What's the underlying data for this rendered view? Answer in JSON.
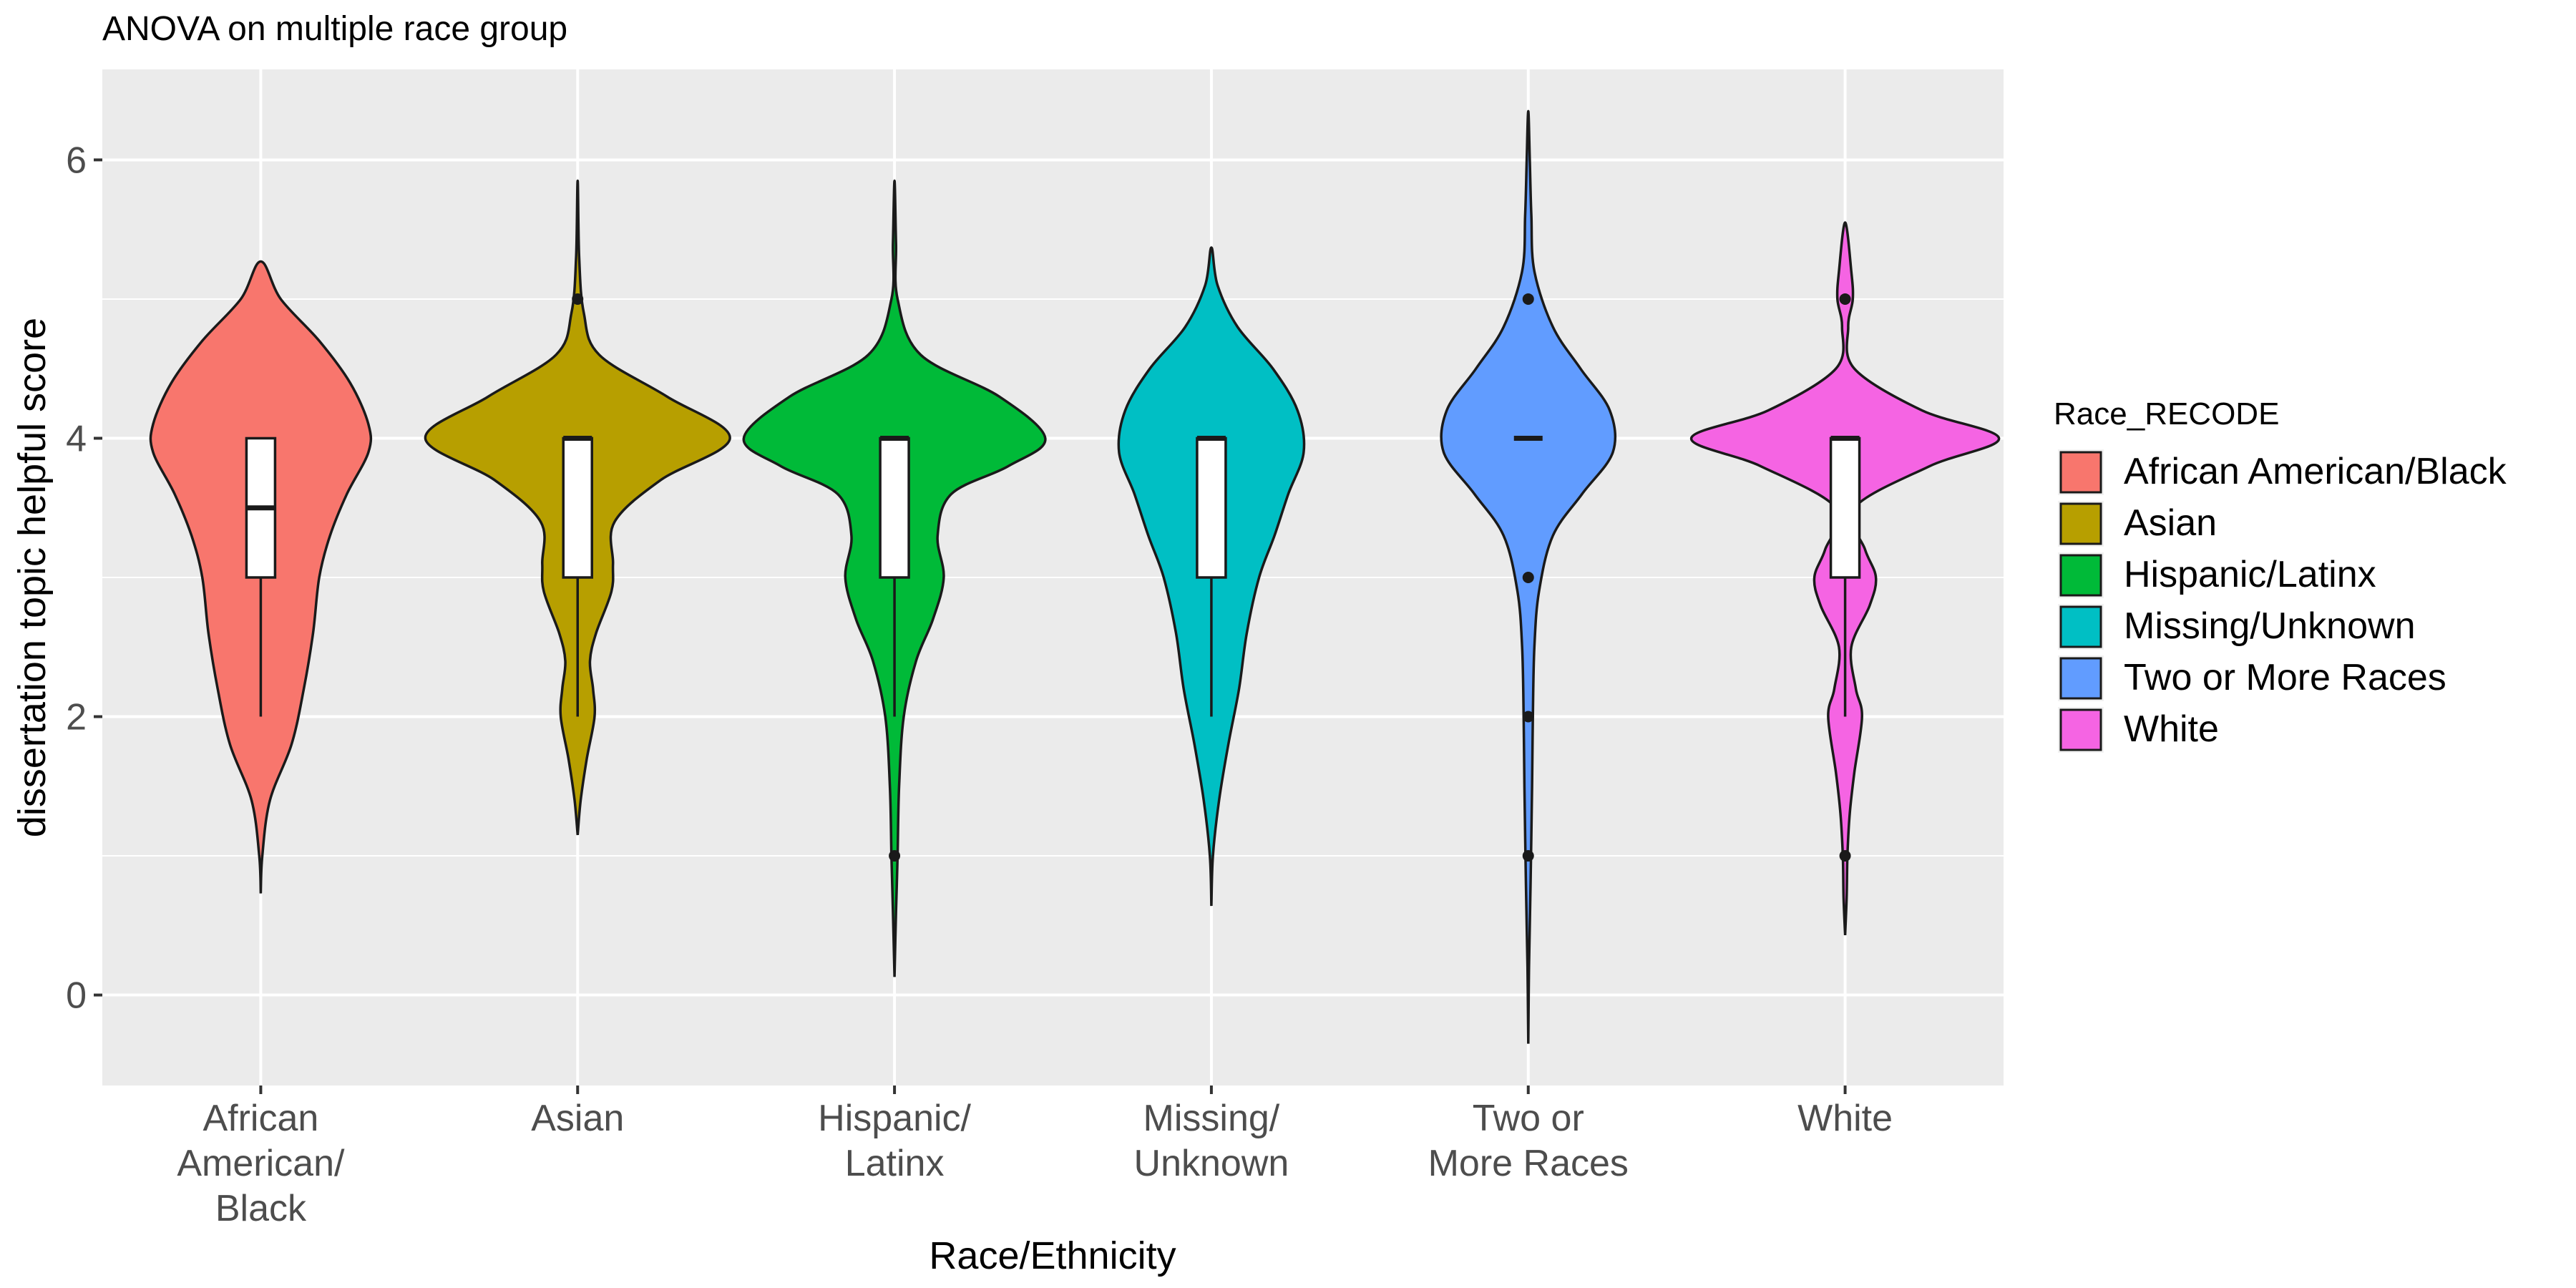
{
  "chart_data": {
    "type": "violin",
    "title": "ANOVA on multiple race group",
    "xlabel": "Race/Ethnicity",
    "ylabel": "dissertation topic helpful score",
    "ylim": [
      -0.65,
      6.65
    ],
    "yticks": [
      0,
      2,
      4,
      6
    ],
    "grid": true,
    "legend": {
      "title": "Race_RECODE",
      "position": "right",
      "entries": [
        "African American/Black",
        "Asian",
        "Hispanic/Latinx",
        "Missing/Unknown",
        "Two or More Races",
        "White"
      ]
    },
    "categories": [
      {
        "label_lines": [
          "African",
          "American/",
          "Black"
        ],
        "color": "#F8766D",
        "box": {
          "q1": 3,
          "median": 3.5,
          "q3": 4,
          "whisker_low": 2,
          "whisker_high": 4
        },
        "outliers": [],
        "violin": [
          [
            0.73,
            0
          ],
          [
            1.0,
            0.01
          ],
          [
            1.4,
            0.06
          ],
          [
            1.8,
            0.2
          ],
          [
            2.2,
            0.28
          ],
          [
            2.6,
            0.34
          ],
          [
            3.0,
            0.38
          ],
          [
            3.3,
            0.45
          ],
          [
            3.6,
            0.56
          ],
          [
            3.9,
            0.7
          ],
          [
            4.1,
            0.7
          ],
          [
            4.4,
            0.58
          ],
          [
            4.7,
            0.38
          ],
          [
            5.0,
            0.13
          ],
          [
            5.27,
            0
          ]
        ]
      },
      {
        "label_lines": [
          "Asian"
        ],
        "color": "#B79F00",
        "box": {
          "q1": 3,
          "median": 4,
          "q3": 4,
          "whisker_low": 2,
          "whisker_high": 4
        },
        "outliers": [
          5
        ],
        "violin": [
          [
            1.15,
            0
          ],
          [
            1.4,
            0.02
          ],
          [
            1.7,
            0.06
          ],
          [
            2.0,
            0.11
          ],
          [
            2.2,
            0.1
          ],
          [
            2.4,
            0.08
          ],
          [
            2.6,
            0.12
          ],
          [
            2.9,
            0.22
          ],
          [
            3.1,
            0.23
          ],
          [
            3.4,
            0.24
          ],
          [
            3.7,
            0.54
          ],
          [
            4.0,
            0.99
          ],
          [
            4.3,
            0.58
          ],
          [
            4.6,
            0.14
          ],
          [
            4.9,
            0.04
          ],
          [
            5.3,
            0.01
          ],
          [
            5.85,
            0
          ]
        ]
      },
      {
        "label_lines": [
          "Hispanic/",
          "Latinx"
        ],
        "color": "#00BA38",
        "box": {
          "q1": 3,
          "median": 4,
          "q3": 4,
          "whisker_low": 2,
          "whisker_high": 4
        },
        "outliers": [
          1
        ],
        "violin": [
          [
            0.13,
            0
          ],
          [
            0.6,
            0.01
          ],
          [
            1.0,
            0.02
          ],
          [
            1.5,
            0.03
          ],
          [
            2.0,
            0.06
          ],
          [
            2.4,
            0.14
          ],
          [
            2.7,
            0.25
          ],
          [
            3.0,
            0.32
          ],
          [
            3.3,
            0.28
          ],
          [
            3.6,
            0.37
          ],
          [
            3.8,
            0.74
          ],
          [
            4.0,
            0.98
          ],
          [
            4.3,
            0.68
          ],
          [
            4.6,
            0.17
          ],
          [
            5.0,
            0.02
          ],
          [
            5.4,
            0.01
          ],
          [
            5.85,
            0
          ]
        ]
      },
      {
        "label_lines": [
          "Missing/",
          "Unknown"
        ],
        "color": "#00BFC4",
        "box": {
          "q1": 3,
          "median": 4,
          "q3": 4,
          "whisker_low": 2,
          "whisker_high": 4
        },
        "outliers": [],
        "violin": [
          [
            0.64,
            0
          ],
          [
            1.0,
            0.01
          ],
          [
            1.4,
            0.05
          ],
          [
            1.8,
            0.11
          ],
          [
            2.2,
            0.18
          ],
          [
            2.6,
            0.23
          ],
          [
            3.0,
            0.31
          ],
          [
            3.3,
            0.41
          ],
          [
            3.6,
            0.5
          ],
          [
            3.9,
            0.6
          ],
          [
            4.2,
            0.56
          ],
          [
            4.5,
            0.4
          ],
          [
            4.8,
            0.17
          ],
          [
            5.1,
            0.04
          ],
          [
            5.37,
            0
          ]
        ]
      },
      {
        "label_lines": [
          "Two or",
          "More Races"
        ],
        "color": "#619CFF",
        "box": {
          "q1": 4,
          "median": 4,
          "q3": 4,
          "whisker_low": 4,
          "whisker_high": 4
        },
        "outliers": [
          1,
          2,
          3,
          5
        ],
        "violin": [
          [
            -0.35,
            0
          ],
          [
            0.2,
            0.005
          ],
          [
            0.8,
            0.015
          ],
          [
            1.5,
            0.025
          ],
          [
            2.0,
            0.03
          ],
          [
            2.5,
            0.04
          ],
          [
            2.9,
            0.07
          ],
          [
            3.3,
            0.16
          ],
          [
            3.6,
            0.35
          ],
          [
            3.9,
            0.55
          ],
          [
            4.2,
            0.53
          ],
          [
            4.5,
            0.34
          ],
          [
            4.8,
            0.16
          ],
          [
            5.2,
            0.04
          ],
          [
            5.6,
            0.02
          ],
          [
            6.0,
            0.01
          ],
          [
            6.35,
            0
          ]
        ]
      },
      {
        "label_lines": [
          "White"
        ],
        "color": "#F564E3",
        "box": {
          "q1": 3,
          "median": 4,
          "q3": 4,
          "whisker_low": 2,
          "whisker_high": 4
        },
        "outliers": [
          1,
          5
        ],
        "violin": [
          [
            0.43,
            0
          ],
          [
            0.7,
            0.01
          ],
          [
            1.0,
            0.015
          ],
          [
            1.3,
            0.03
          ],
          [
            1.6,
            0.06
          ],
          [
            2.0,
            0.11
          ],
          [
            2.2,
            0.07
          ],
          [
            2.5,
            0.04
          ],
          [
            2.8,
            0.16
          ],
          [
            3.0,
            0.2
          ],
          [
            3.2,
            0.13
          ],
          [
            3.5,
            0.06
          ],
          [
            3.8,
            0.55
          ],
          [
            4.0,
            1.0
          ],
          [
            4.2,
            0.5
          ],
          [
            4.5,
            0.06
          ],
          [
            4.8,
            0.02
          ],
          [
            5.0,
            0.05
          ],
          [
            5.2,
            0.04
          ],
          [
            5.55,
            0
          ]
        ]
      }
    ]
  }
}
